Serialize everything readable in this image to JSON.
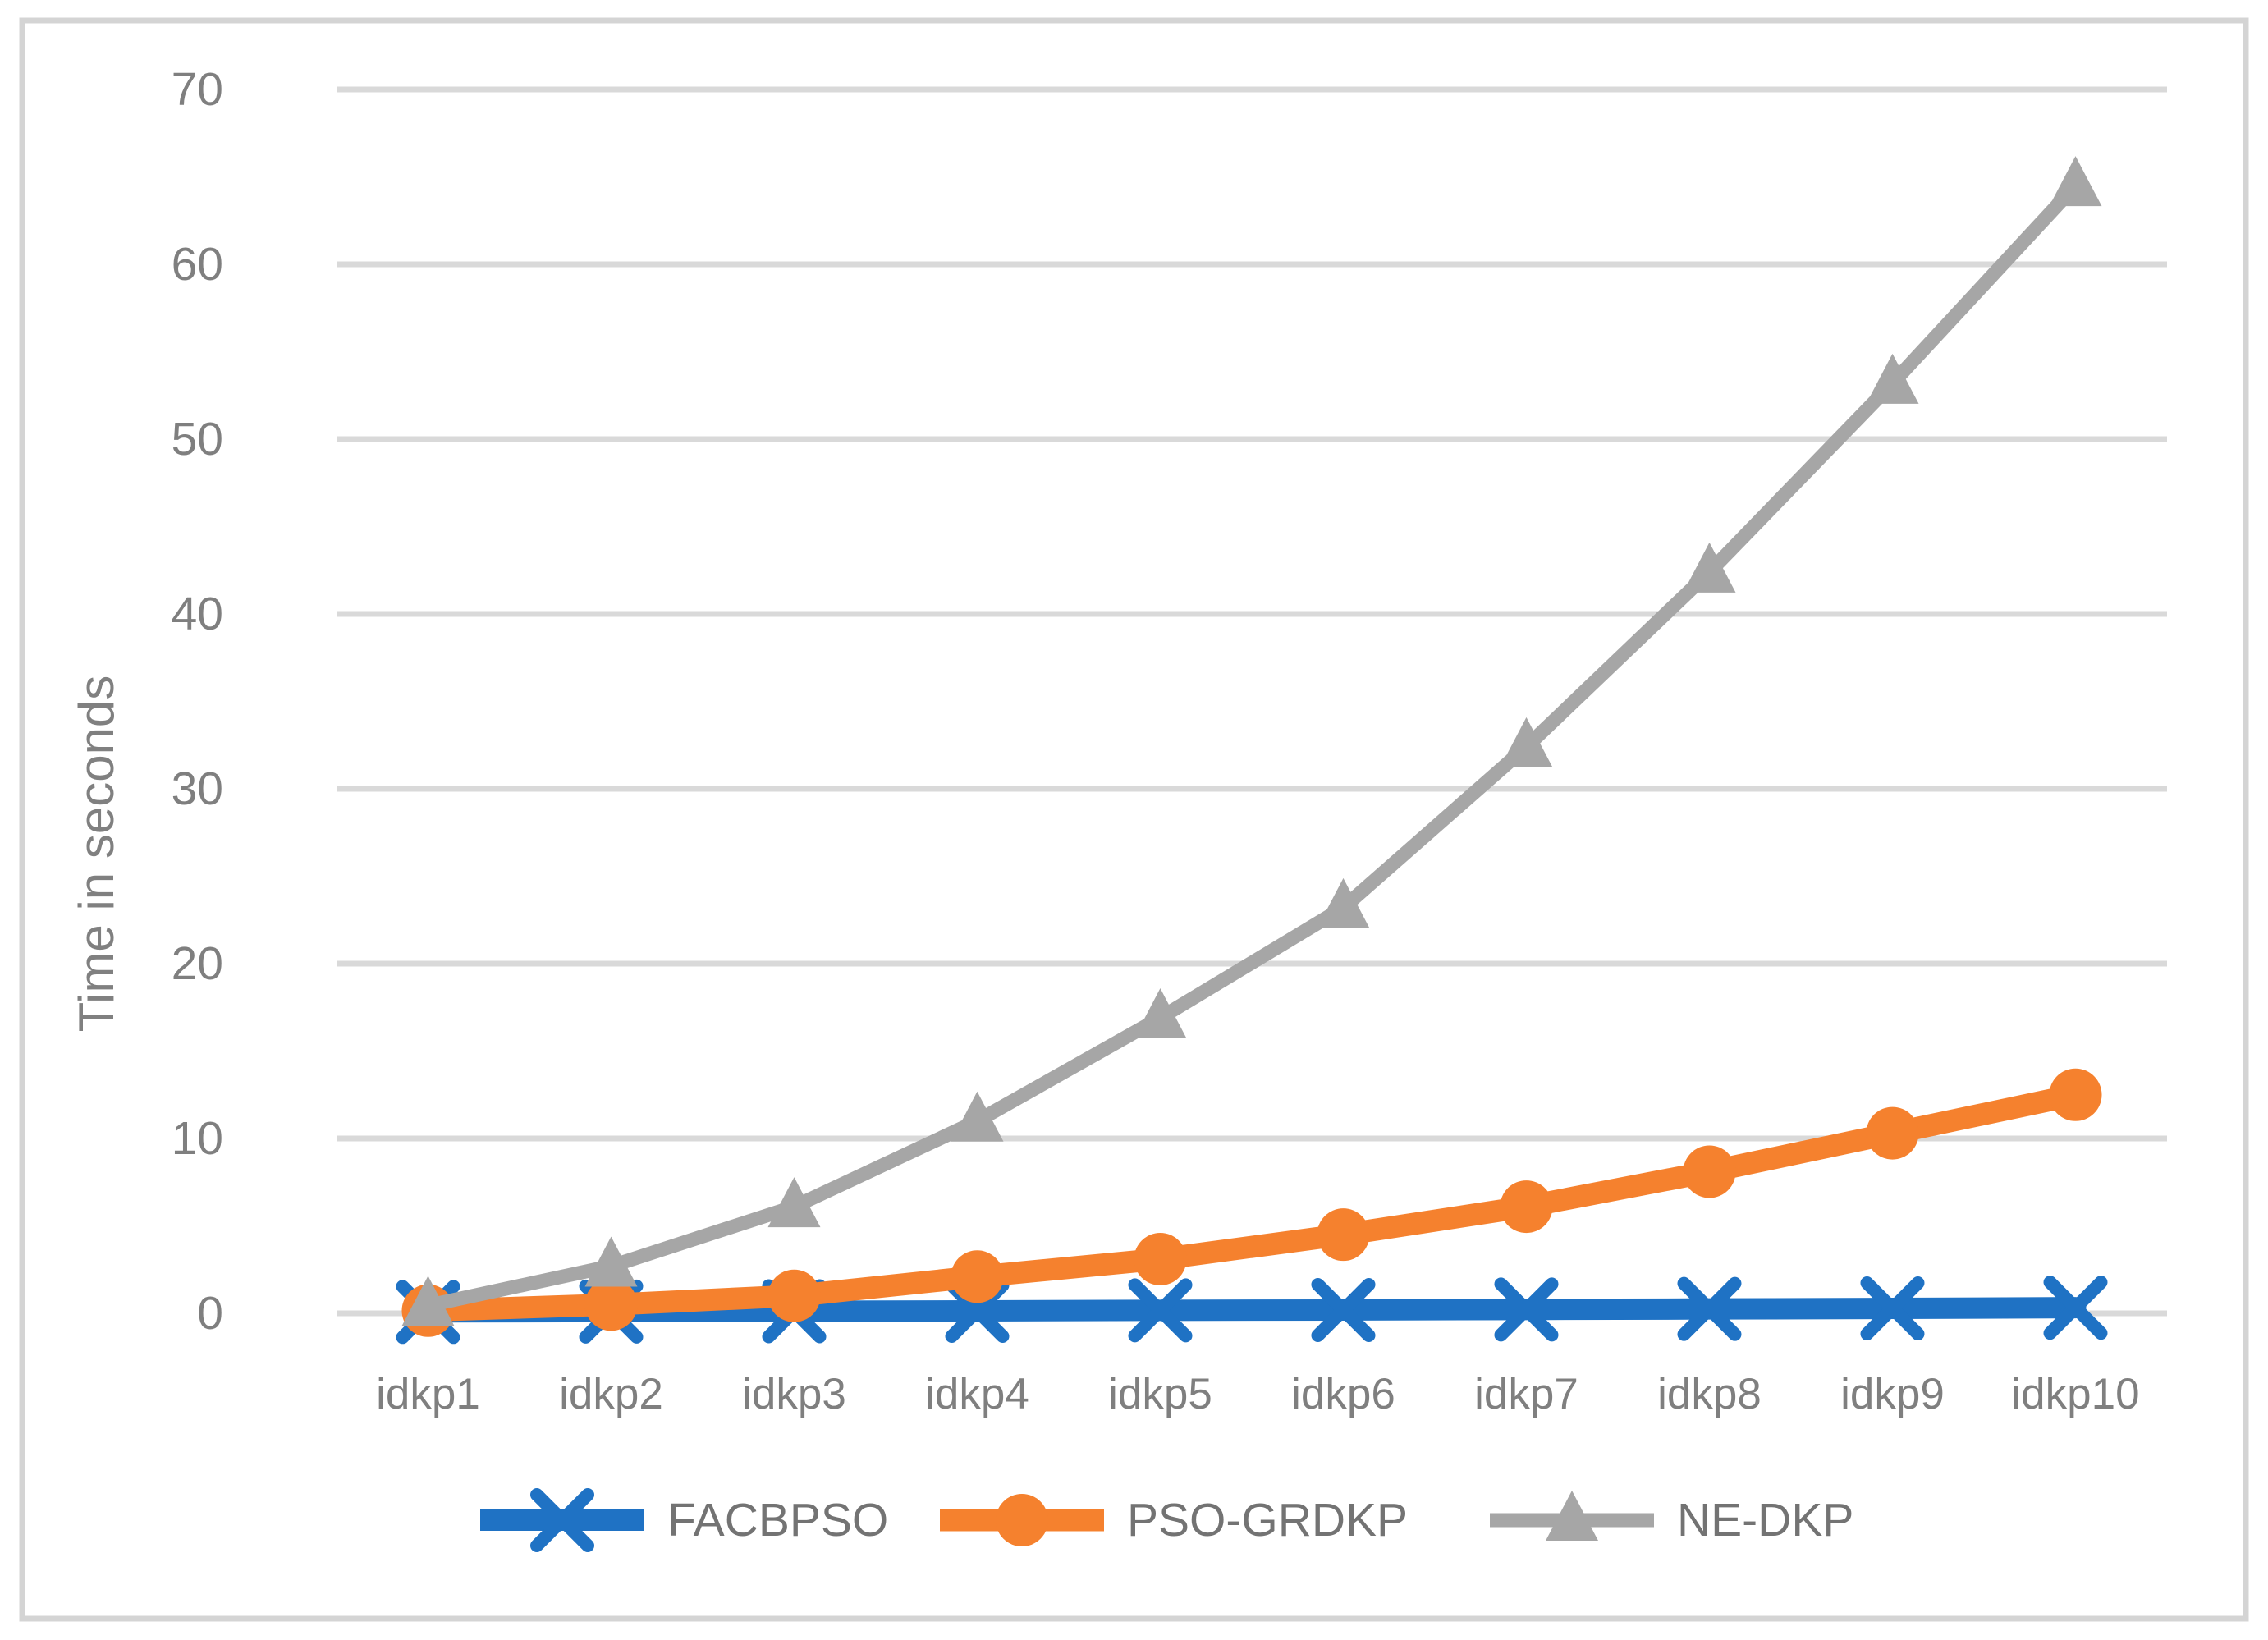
{
  "figure": {
    "background_color": "#ffffff",
    "border_color": "#d4d4d4",
    "gridline_color": "#d9d9d9",
    "axis_line_color": "#d9d9d9",
    "tick_label_color": "#7f7f7f",
    "axis_title_color": "#808080",
    "legend_text_color": "#737373"
  },
  "chart_data": {
    "type": "line",
    "title": "",
    "xlabel": "",
    "ylabel": "Time in seconds",
    "ylim": [
      0,
      70
    ],
    "yticks": [
      0,
      10,
      20,
      30,
      40,
      50,
      60,
      70
    ],
    "grid": "horizontal",
    "legend_position": "bottom",
    "categories": [
      "idkp1",
      "idkp2",
      "idkp3",
      "idkp4",
      "idkp5",
      "idkp6",
      "idkp7",
      "idkp8",
      "idkp9",
      "idkp10"
    ],
    "series": [
      {
        "name": "FACBPSO",
        "color": "#1f72c4",
        "marker": "x",
        "line_width": 26,
        "values": [
          0.08,
          0.1,
          0.12,
          0.14,
          0.17,
          0.19,
          0.22,
          0.25,
          0.28,
          0.32
        ]
      },
      {
        "name": "PSO-GRDKP",
        "color": "#f5812e",
        "marker": "circle",
        "line_width": 27,
        "values": [
          0.15,
          0.5,
          1.0,
          2.1,
          3.1,
          4.5,
          6.1,
          8.1,
          10.3,
          12.5
        ]
      },
      {
        "name": "NE-DKP",
        "color": "#a6a6a6",
        "marker": "triangle",
        "line_width": 17,
        "values": [
          0.45,
          2.7,
          6.1,
          11.0,
          16.9,
          23.2,
          32.4,
          42.4,
          53.2,
          64.5
        ]
      }
    ]
  }
}
